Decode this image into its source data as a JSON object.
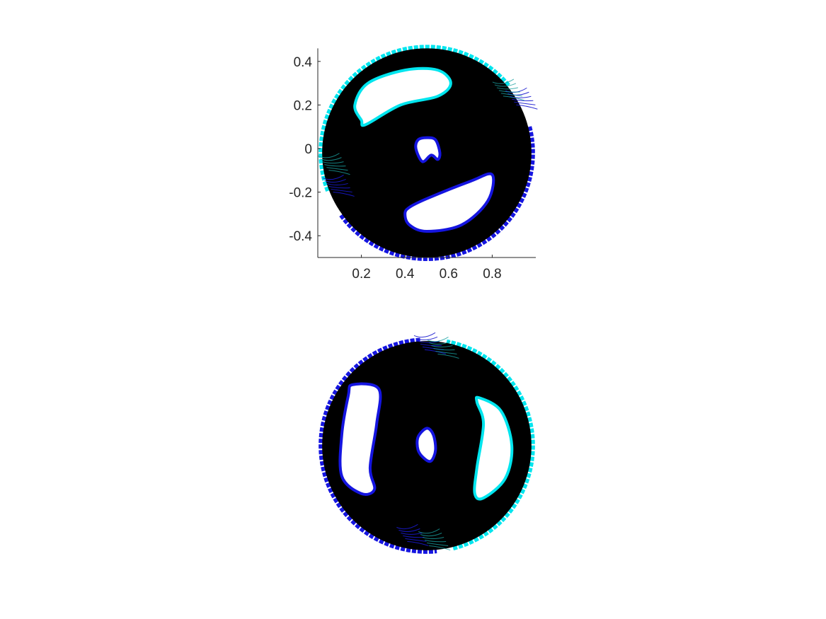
{
  "chart_data": [
    {
      "type": "scatter",
      "title": "",
      "xlabel": "",
      "ylabel": "",
      "xlim": [
        0,
        1
      ],
      "ylim": [
        -0.5,
        0.46
      ],
      "x_ticks": [
        0.2,
        0.4,
        0.6,
        0.8
      ],
      "x_tick_labels": [
        "0.2",
        "0.4",
        "0.6",
        "0.8"
      ],
      "y_ticks": [
        0.4,
        0.2,
        0,
        -0.2,
        -0.4
      ],
      "y_tick_labels": [
        "0.4",
        "0.2",
        "0",
        "-0.2",
        "-0.4"
      ],
      "axes_visible": true,
      "grid": false,
      "disk": {
        "center": [
          0.5,
          -0.02
        ],
        "radius": 0.48
      },
      "holes": [
        {
          "name": "upper-hole",
          "boundary_color": "#00e5ee",
          "points": [
            [
              0.2,
              0.13
            ],
            [
              0.17,
              0.2
            ],
            [
              0.23,
              0.3
            ],
            [
              0.4,
              0.36
            ],
            [
              0.55,
              0.36
            ],
            [
              0.61,
              0.3
            ],
            [
              0.55,
              0.24
            ],
            [
              0.38,
              0.2
            ],
            [
              0.22,
              0.11
            ]
          ]
        },
        {
          "name": "lower-hole",
          "boundary_color": "#1515e0",
          "points": [
            [
              0.42,
              -0.27
            ],
            [
              0.5,
              -0.23
            ],
            [
              0.7,
              -0.15
            ],
            [
              0.8,
              -0.12
            ],
            [
              0.78,
              -0.24
            ],
            [
              0.66,
              -0.35
            ],
            [
              0.5,
              -0.38
            ],
            [
              0.42,
              -0.35
            ],
            [
              0.4,
              -0.3
            ]
          ]
        },
        {
          "name": "center-hole",
          "boundary_color": "#1515e0",
          "points": [
            [
              0.48,
              -0.06
            ],
            [
              0.52,
              -0.03
            ],
            [
              0.55,
              -0.05
            ],
            [
              0.56,
              -0.02
            ],
            [
              0.54,
              0.04
            ],
            [
              0.5,
              0.05
            ],
            [
              0.46,
              0.04
            ],
            [
              0.45,
              0.0
            ]
          ]
        }
      ],
      "arc_colors": [
        "#00e5ee",
        "#1515e0"
      ]
    },
    {
      "type": "scatter",
      "title": "",
      "xlabel": "",
      "ylabel": "",
      "axes_visible": false,
      "grid": false,
      "disk": {
        "center": [
          0.5,
          0.0
        ],
        "radius": 0.48
      },
      "holes": [
        {
          "name": "left-hole",
          "boundary_color": "#1515e0",
          "points": [
            [
              0.14,
              0.23
            ],
            [
              0.16,
              0.28
            ],
            [
              0.28,
              0.26
            ],
            [
              0.27,
              0.1
            ],
            [
              0.24,
              -0.1
            ],
            [
              0.26,
              -0.2
            ],
            [
              0.2,
              -0.22
            ],
            [
              0.11,
              -0.14
            ],
            [
              0.11,
              0.05
            ]
          ]
        },
        {
          "name": "right-hole",
          "boundary_color": "#00e5ee",
          "points": [
            [
              0.74,
              0.22
            ],
            [
              0.84,
              0.16
            ],
            [
              0.89,
              0.0
            ],
            [
              0.86,
              -0.15
            ],
            [
              0.76,
              -0.24
            ],
            [
              0.72,
              -0.22
            ],
            [
              0.73,
              -0.1
            ],
            [
              0.76,
              0.1
            ],
            [
              0.73,
              0.2
            ]
          ]
        },
        {
          "name": "center-hole",
          "boundary_color": "#1515e0",
          "points": [
            [
              0.46,
              0.04
            ],
            [
              0.5,
              0.08
            ],
            [
              0.53,
              0.05
            ],
            [
              0.54,
              -0.02
            ],
            [
              0.52,
              -0.07
            ],
            [
              0.49,
              -0.06
            ],
            [
              0.46,
              -0.02
            ]
          ]
        }
      ],
      "arc_colors": [
        "#00e5ee",
        "#1515e0"
      ]
    }
  ]
}
